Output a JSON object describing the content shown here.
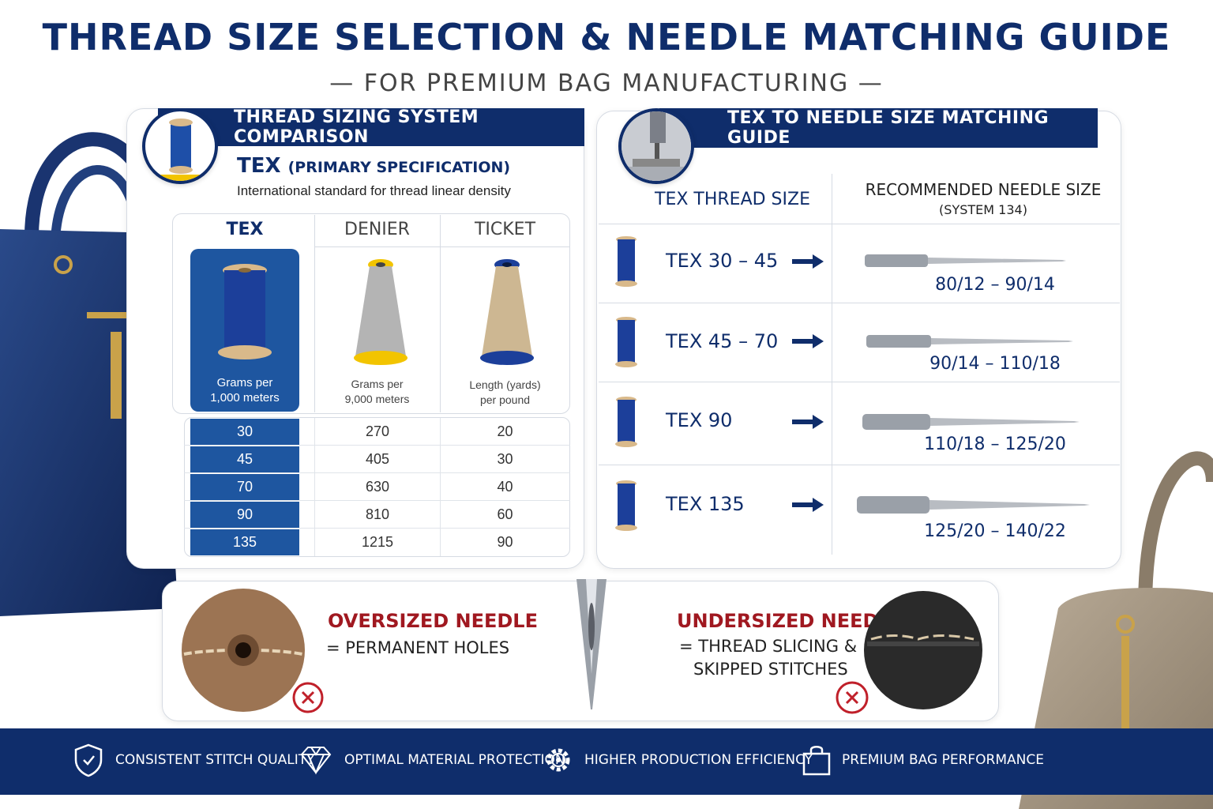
{
  "header": {
    "title": "THREAD SIZE SELECTION & NEEDLE MATCHING GUIDE",
    "subtitle": "— FOR PREMIUM BAG MANUFACTURING —"
  },
  "left_panel": {
    "banner": "THREAD SIZING SYSTEM COMPARISON",
    "tex_label": "TEX",
    "tex_spec": "(PRIMARY SPECIFICATION)",
    "description": "International standard for thread linear density",
    "columns": [
      {
        "name": "TEX",
        "caption": [
          "Grams per",
          "1,000 meters"
        ]
      },
      {
        "name": "DENIER",
        "caption": [
          "Grams per",
          "9,000 meters"
        ]
      },
      {
        "name": "TICKET",
        "caption": [
          "Length (yards)",
          "per pound"
        ]
      }
    ],
    "rows": [
      {
        "tex": "30",
        "denier": "270",
        "ticket": "20"
      },
      {
        "tex": "45",
        "denier": "405",
        "ticket": "30"
      },
      {
        "tex": "70",
        "denier": "630",
        "ticket": "40"
      },
      {
        "tex": "90",
        "denier": "810",
        "ticket": "60"
      },
      {
        "tex": "135",
        "denier": "1215",
        "ticket": "90"
      }
    ]
  },
  "right_panel": {
    "banner": "TEX TO NEEDLE SIZE MATCHING GUIDE",
    "col_thread": "TEX THREAD SIZE",
    "col_needle": "RECOMMENDED NEEDLE SIZE",
    "col_needle_sub": "(SYSTEM 134)",
    "rows": [
      {
        "tex": "TEX 30 – 45",
        "needle": "80/12 – 90/14"
      },
      {
        "tex": "TEX 45 – 70",
        "needle": "90/14 – 110/18"
      },
      {
        "tex": "TEX  90",
        "needle": "110/18 – 125/20"
      },
      {
        "tex": "TEX 135",
        "needle": "125/20 – 140/22"
      }
    ]
  },
  "warnings": {
    "oversized_title": "OVERSIZED NEEDLE",
    "oversized_desc": "= PERMANENT HOLES",
    "undersized_title": "UNDERSIZED NEEDLE",
    "undersized_desc_1": "= THREAD SLICING &",
    "undersized_desc_2": "SKIPPED STITCHES"
  },
  "footer": {
    "items": [
      {
        "label": "CONSISTENT STITCH QUALITY",
        "icon": "shield-icon"
      },
      {
        "label": "OPTIMAL MATERIAL PROTECTION",
        "icon": "diamond-icon"
      },
      {
        "label": "HIGHER PRODUCTION EFFICIENCY",
        "icon": "gear-icon"
      },
      {
        "label": "PREMIUM BAG PERFORMANCE",
        "icon": "bag-icon"
      }
    ]
  },
  "colors": {
    "navy": "#0f2d6b",
    "blue": "#1e56a0",
    "warning_red": "#a01820"
  }
}
